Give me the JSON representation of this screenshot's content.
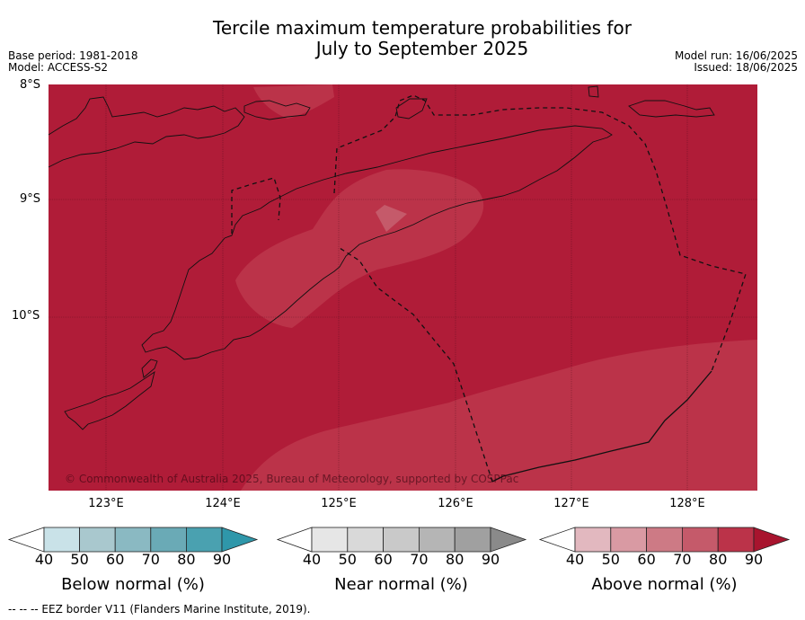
{
  "title_line1": "Tercile maximum temperature probabilities for",
  "title_line2": "July to September 2025",
  "meta_left": [
    "Base period: 1981-2018",
    "Model: ACCESS-S2"
  ],
  "meta_right": [
    "Model run: 16/06/2025",
    "Issued: 18/06/2025"
  ],
  "map": {
    "lat_labels": [
      "8°S",
      "9°S",
      "10°S"
    ],
    "lon_labels": [
      "123°E",
      "124°E",
      "125°E",
      "126°E",
      "127°E",
      "128°E"
    ],
    "copyright": "© Commonwealth of Australia 2025, Bureau of Meteorology, supported by COSPPac",
    "colors": {
      "above_90": "#b01c38",
      "above_80": "#bb3349",
      "above_70": "#c55a6a",
      "coast": "#111111",
      "eez": "#111111"
    }
  },
  "legend": [
    {
      "title": "Below normal (%)",
      "ticks": [
        "40",
        "50",
        "60",
        "70",
        "80",
        "90"
      ],
      "colors": [
        "#c9e2e8",
        "#a9c8ce",
        "#8ab9c2",
        "#6aaab6",
        "#4aa1b0",
        "#2f97aa"
      ]
    },
    {
      "title": "Near normal (%)",
      "ticks": [
        "40",
        "50",
        "60",
        "70",
        "80",
        "90"
      ],
      "colors": [
        "#e6e6e6",
        "#d9d9d9",
        "#c9c9c9",
        "#b5b5b5",
        "#a0a0a0",
        "#8a8a8a"
      ]
    },
    {
      "title": "Above normal (%)",
      "ticks": [
        "40",
        "50",
        "60",
        "70",
        "80",
        "90"
      ],
      "colors": [
        "#e2b8bf",
        "#d99aa3",
        "#cd7a85",
        "#c55a6a",
        "#bb3349",
        "#a8142e"
      ]
    }
  ],
  "footer_note": "--  --  -- EEZ border V11 (Flanders Marine Institute, 2019)."
}
